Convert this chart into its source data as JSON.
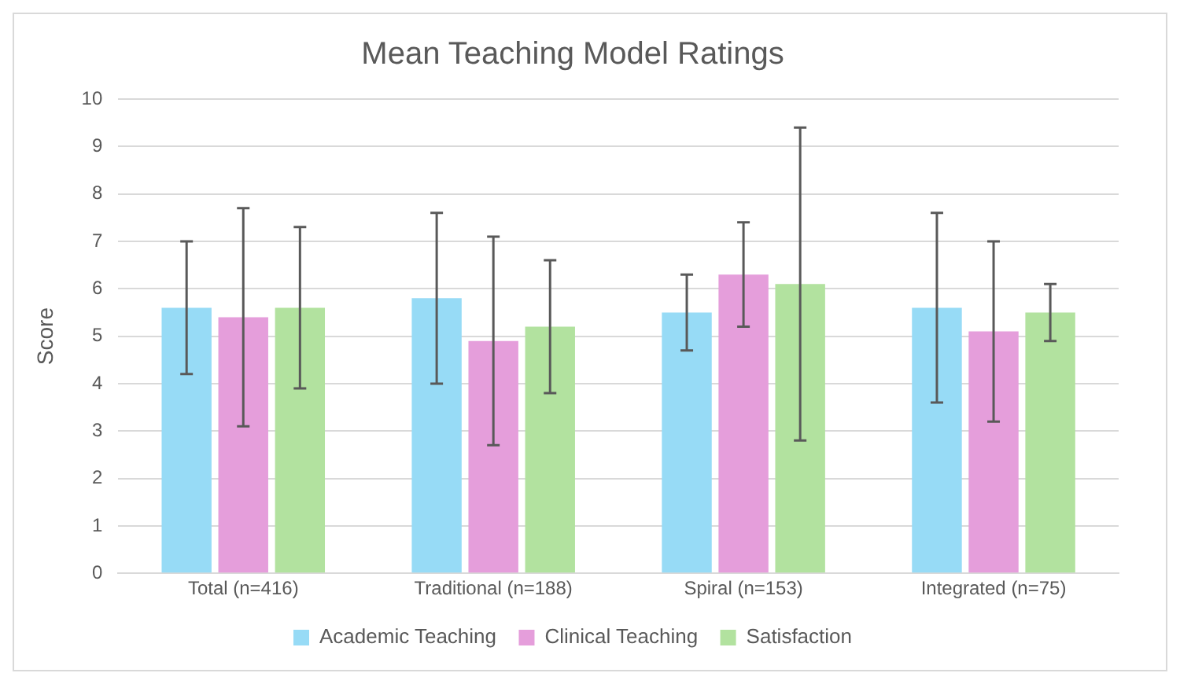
{
  "chart_data": {
    "type": "bar",
    "title": "Mean Teaching Model Ratings",
    "ylabel": "Score",
    "categories": [
      "Total (n=416)",
      "Traditional (n=188)",
      "Spiral (n=153)",
      "Integrated (n=75)"
    ],
    "series": [
      {
        "name": "Academic Teaching",
        "color": "#97dbf6",
        "values": [
          5.6,
          5.8,
          5.5,
          5.6
        ],
        "errors": [
          1.4,
          1.8,
          0.8,
          2.0
        ]
      },
      {
        "name": "Clinical Teaching",
        "color": "#e59edb",
        "values": [
          5.4,
          4.9,
          6.3,
          5.1
        ],
        "errors": [
          2.3,
          2.2,
          1.1,
          1.9
        ]
      },
      {
        "name": "Satisfaction",
        "color": "#b2e29f",
        "values": [
          5.6,
          5.2,
          6.1,
          5.5
        ],
        "errors": [
          1.7,
          1.4,
          3.3,
          0.6
        ]
      }
    ],
    "ylim": [
      0,
      10
    ],
    "yticks": [
      0,
      1,
      2,
      3,
      4,
      5,
      6,
      7,
      8,
      9,
      10
    ],
    "grid": "y",
    "legend": "bottom"
  }
}
